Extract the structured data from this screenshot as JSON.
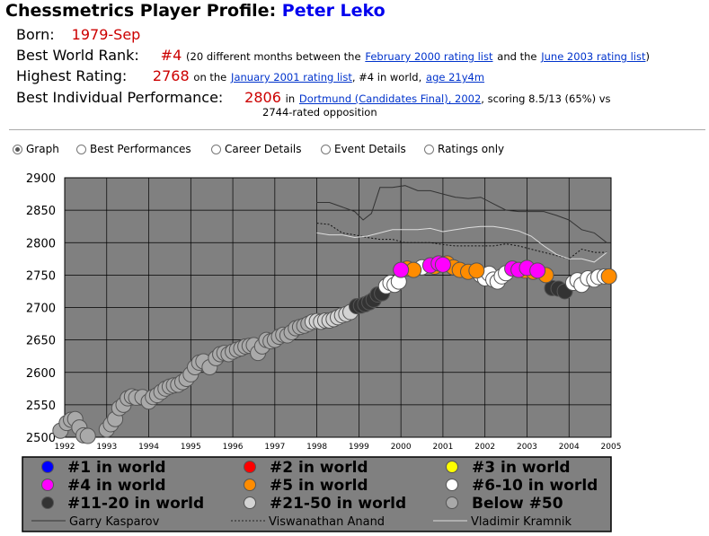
{
  "header": {
    "title_prefix": "Chessmetrics Player Profile:",
    "player_name": "Peter Leko"
  },
  "profile": {
    "born_label": "Born:",
    "born_value": "1979-Sep",
    "rank_label": "Best World Rank:",
    "rank_value": "#4",
    "rank_text_1": "(20 different months between the",
    "rank_link_1": "February 2000 rating list",
    "rank_text_2": "and the",
    "rank_link_2": "June 2003 rating list",
    "rank_text_3": ")",
    "high_label": "Highest Rating:",
    "high_value": "2768",
    "high_text_1": "on the",
    "high_link_1": "January 2001 rating list",
    "high_text_2": ", #4 in world,",
    "high_link_2": "age 21y4m",
    "perf_label": "Best Individual Performance:",
    "perf_value": "2806",
    "perf_text_1": "in",
    "perf_link_1": "Dortmund (Candidates Final), 2002",
    "perf_text_2": ", scoring 8.5/13 (65%) vs",
    "perf_text_3": "2744-rated opposition"
  },
  "tabs": [
    {
      "label": "Graph",
      "selected": true
    },
    {
      "label": "Best Performances",
      "selected": false
    },
    {
      "label": "Career Details",
      "selected": false
    },
    {
      "label": "Event Details",
      "selected": false
    },
    {
      "label": "Ratings only",
      "selected": false
    }
  ],
  "chart_data": {
    "type": "scatter",
    "x_ticks": [
      1992,
      1993,
      1994,
      1995,
      1996,
      1997,
      1998,
      1999,
      2000,
      2001,
      2002,
      2003,
      2004,
      2005
    ],
    "y_ticks": [
      2500,
      2550,
      2600,
      2650,
      2700,
      2750,
      2800,
      2850,
      2900
    ],
    "xlim": [
      1992,
      2005
    ],
    "ylim": [
      2500,
      2900
    ],
    "background": "#808080",
    "grid": true,
    "legend": {
      "placement": "bottom",
      "items": [
        {
          "label": "#1 in world",
          "color": "#0000ff"
        },
        {
          "label": "#2 in world",
          "color": "#ff0000"
        },
        {
          "label": "#3 in world",
          "color": "#ffff00"
        },
        {
          "label": "#4 in world",
          "color": "#ff00ff"
        },
        {
          "label": "#5 in world",
          "color": "#ff8c00"
        },
        {
          "label": "#6-10 in world",
          "color": "#ffffff"
        },
        {
          "label": "#11-20 in world",
          "color": "#333333"
        },
        {
          "label": "#21-50 in world",
          "color": "#d3d3d3"
        },
        {
          "label": "Below #50",
          "color": "#a9a9a9"
        }
      ],
      "lines": [
        {
          "label": "Garry Kasparov",
          "style": "solid",
          "color": "#333333"
        },
        {
          "label": "Viswanathan Anand",
          "style": "dotted",
          "color": "#222222"
        },
        {
          "label": "Vladimir Kramnik",
          "style": "solid",
          "color": "#dddddd"
        }
      ]
    },
    "series": [
      {
        "name": "Below #50",
        "rank_group": "below50",
        "color": "#a9a9a9",
        "points": [
          [
            1991.9,
            2510
          ],
          [
            1992.05,
            2522
          ],
          [
            1992.15,
            2527
          ],
          [
            1992.25,
            2528
          ],
          [
            1992.35,
            2515
          ],
          [
            1992.45,
            2503
          ],
          [
            1992.55,
            2502
          ],
          [
            1993.0,
            2512
          ],
          [
            1993.1,
            2520
          ],
          [
            1993.2,
            2528
          ],
          [
            1993.3,
            2545
          ],
          [
            1993.4,
            2550
          ],
          [
            1993.5,
            2560
          ],
          [
            1993.6,
            2563
          ],
          [
            1993.7,
            2561
          ],
          [
            1993.85,
            2562
          ],
          [
            1994.0,
            2555
          ],
          [
            1994.1,
            2562
          ],
          [
            1994.2,
            2565
          ],
          [
            1994.3,
            2570
          ],
          [
            1994.4,
            2575
          ],
          [
            1994.5,
            2578
          ],
          [
            1994.6,
            2580
          ],
          [
            1994.7,
            2581
          ],
          [
            1994.8,
            2585
          ],
          [
            1994.9,
            2590
          ],
          [
            1995.0,
            2597
          ],
          [
            1995.1,
            2608
          ],
          [
            1995.2,
            2615
          ],
          [
            1995.3,
            2617
          ],
          [
            1995.45,
            2608
          ],
          [
            1995.6,
            2622
          ],
          [
            1995.7,
            2628
          ],
          [
            1995.8,
            2630
          ],
          [
            1995.9,
            2628
          ],
          [
            1996.0,
            2632
          ],
          [
            1996.1,
            2635
          ],
          [
            1996.2,
            2637
          ],
          [
            1996.3,
            2640
          ],
          [
            1996.4,
            2641
          ],
          [
            1996.5,
            2642
          ],
          [
            1996.6,
            2630
          ],
          [
            1996.7,
            2640
          ],
          [
            1996.8,
            2650
          ],
          [
            1996.9,
            2648
          ],
          [
            1997.0,
            2650
          ],
          [
            1997.1,
            2655
          ],
          [
            1997.2,
            2658
          ],
          [
            1997.3,
            2657
          ],
          [
            1997.4,
            2662
          ],
          [
            1997.5,
            2668
          ],
          [
            1997.6,
            2670
          ],
          [
            1997.7,
            2672
          ],
          [
            1997.8,
            2675
          ]
        ]
      },
      {
        "name": "#21-50 in world",
        "rank_group": "21-50",
        "color": "#d3d3d3",
        "points": [
          [
            1997.9,
            2678
          ],
          [
            1998.0,
            2679
          ],
          [
            1998.1,
            2678
          ],
          [
            1998.2,
            2680
          ],
          [
            1998.3,
            2680
          ],
          [
            1998.4,
            2682
          ],
          [
            1998.5,
            2685
          ],
          [
            1998.6,
            2688
          ],
          [
            1998.7,
            2690
          ],
          [
            1998.8,
            2693
          ]
        ]
      },
      {
        "name": "#11-20 in world",
        "rank_group": "11-20",
        "color": "#333333",
        "points": [
          [
            1998.95,
            2702
          ],
          [
            1999.05,
            2703
          ],
          [
            1999.15,
            2705
          ],
          [
            1999.25,
            2708
          ],
          [
            1999.35,
            2712
          ],
          [
            1999.45,
            2720
          ],
          [
            1999.55,
            2722
          ],
          [
            2003.6,
            2730
          ],
          [
            2003.75,
            2729
          ],
          [
            2003.9,
            2725
          ]
        ]
      },
      {
        "name": "#6-10 in world",
        "rank_group": "6-10",
        "color": "#ffffff",
        "points": [
          [
            1999.65,
            2733
          ],
          [
            1999.75,
            2738
          ],
          [
            1999.85,
            2735
          ],
          [
            1999.95,
            2740
          ],
          [
            2000.5,
            2762
          ],
          [
            2001.9,
            2750
          ],
          [
            2002.0,
            2745
          ],
          [
            2002.1,
            2752
          ],
          [
            2002.2,
            2743
          ],
          [
            2002.3,
            2740
          ],
          [
            2002.4,
            2748
          ],
          [
            2002.5,
            2753
          ],
          [
            2004.1,
            2738
          ],
          [
            2004.2,
            2742
          ],
          [
            2004.3,
            2735
          ],
          [
            2004.45,
            2745
          ],
          [
            2004.6,
            2743
          ],
          [
            2004.7,
            2747
          ],
          [
            2004.85,
            2748
          ]
        ]
      },
      {
        "name": "#5 in world",
        "rank_group": "5",
        "color": "#ff8c00",
        "points": [
          [
            2000.15,
            2760
          ],
          [
            2000.3,
            2758
          ],
          [
            2000.8,
            2763
          ],
          [
            2001.1,
            2768
          ],
          [
            2001.25,
            2762
          ],
          [
            2001.4,
            2758
          ],
          [
            2001.6,
            2755
          ],
          [
            2001.8,
            2757
          ],
          [
            2002.95,
            2757
          ],
          [
            2003.15,
            2755
          ],
          [
            2003.45,
            2750
          ],
          [
            2004.95,
            2748
          ]
        ]
      },
      {
        "name": "#4 in world",
        "rank_group": "4",
        "color": "#ff00ff",
        "points": [
          [
            2000.0,
            2758
          ],
          [
            2000.7,
            2765
          ],
          [
            2000.9,
            2768
          ],
          [
            2001.0,
            2766
          ],
          [
            2002.65,
            2760
          ],
          [
            2002.8,
            2758
          ],
          [
            2003.0,
            2761
          ],
          [
            2003.25,
            2757
          ]
        ]
      }
    ],
    "lines": [
      {
        "name": "Garry Kasparov",
        "style": "solid",
        "points": [
          [
            1998.0,
            2862
          ],
          [
            1998.3,
            2862
          ],
          [
            1998.6,
            2855
          ],
          [
            1998.9,
            2848
          ],
          [
            1999.1,
            2835
          ],
          [
            1999.3,
            2845
          ],
          [
            1999.5,
            2885
          ],
          [
            1999.8,
            2885
          ],
          [
            2000.1,
            2888
          ],
          [
            2000.4,
            2880
          ],
          [
            2000.7,
            2880
          ],
          [
            2001.0,
            2875
          ],
          [
            2001.3,
            2870
          ],
          [
            2001.6,
            2868
          ],
          [
            2001.9,
            2870
          ],
          [
            2002.2,
            2860
          ],
          [
            2002.5,
            2850
          ],
          [
            2002.8,
            2848
          ],
          [
            2003.1,
            2848
          ],
          [
            2003.4,
            2848
          ],
          [
            2003.7,
            2842
          ],
          [
            2004.0,
            2835
          ],
          [
            2004.3,
            2820
          ],
          [
            2004.6,
            2815
          ],
          [
            2004.9,
            2800
          ]
        ]
      },
      {
        "name": "Viswanathan Anand",
        "style": "dotted",
        "points": [
          [
            1998.0,
            2830
          ],
          [
            1998.3,
            2828
          ],
          [
            1998.6,
            2815
          ],
          [
            1998.9,
            2812
          ],
          [
            1999.2,
            2808
          ],
          [
            1999.5,
            2805
          ],
          [
            1999.8,
            2805
          ],
          [
            2000.1,
            2800
          ],
          [
            2000.4,
            2800
          ],
          [
            2000.7,
            2800
          ],
          [
            2001.0,
            2797
          ],
          [
            2001.3,
            2795
          ],
          [
            2001.6,
            2795
          ],
          [
            2001.9,
            2795
          ],
          [
            2002.2,
            2795
          ],
          [
            2002.5,
            2798
          ],
          [
            2002.8,
            2795
          ],
          [
            2003.1,
            2790
          ],
          [
            2003.4,
            2785
          ],
          [
            2003.7,
            2780
          ],
          [
            2004.0,
            2775
          ],
          [
            2004.3,
            2790
          ],
          [
            2004.6,
            2785
          ],
          [
            2004.9,
            2785
          ]
        ]
      },
      {
        "name": "Vladimir Kramnik",
        "style": "solid",
        "points": [
          [
            1998.0,
            2815
          ],
          [
            1998.3,
            2812
          ],
          [
            1998.6,
            2812
          ],
          [
            1998.9,
            2808
          ],
          [
            1999.2,
            2810
          ],
          [
            1999.5,
            2815
          ],
          [
            1999.8,
            2820
          ],
          [
            2000.1,
            2820
          ],
          [
            2000.4,
            2820
          ],
          [
            2000.7,
            2822
          ],
          [
            2001.0,
            2817
          ],
          [
            2001.3,
            2820
          ],
          [
            2001.6,
            2823
          ],
          [
            2001.9,
            2825
          ],
          [
            2002.2,
            2825
          ],
          [
            2002.5,
            2822
          ],
          [
            2002.8,
            2818
          ],
          [
            2003.1,
            2810
          ],
          [
            2003.4,
            2795
          ],
          [
            2003.7,
            2782
          ],
          [
            2004.0,
            2775
          ],
          [
            2004.3,
            2775
          ],
          [
            2004.6,
            2770
          ],
          [
            2004.9,
            2785
          ]
        ]
      }
    ]
  }
}
